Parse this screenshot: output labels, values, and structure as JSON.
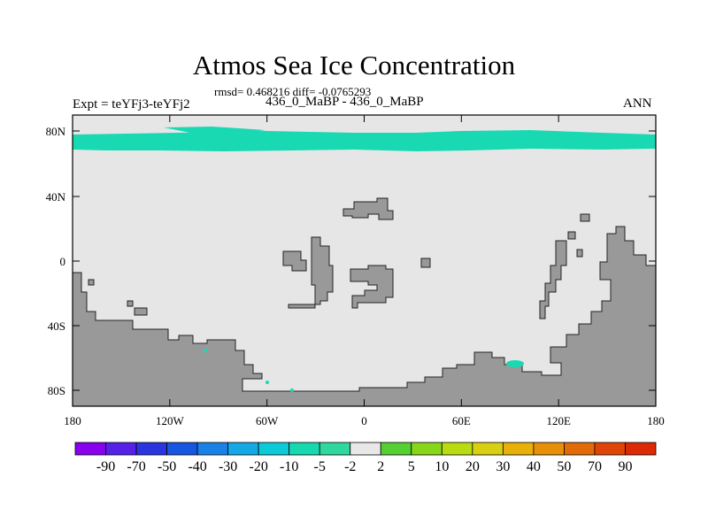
{
  "header": {
    "title": "Atmos Sea Ice Concentration",
    "stats": "rmsd= 0.468216 diff= -0.0765293",
    "subtitle": "436_0_MaBP - 436_0_MaBP",
    "experiment": "Expt = teYFj3-teYFj2",
    "season": "ANN"
  },
  "map": {
    "y_ticks": [
      "80N",
      "40N",
      "0",
      "40S",
      "80S"
    ],
    "x_ticks": [
      "180",
      "120W",
      "60W",
      "0",
      "60E",
      "120E",
      "180"
    ],
    "colors": {
      "background": "#e6e6e6",
      "land": "#999999",
      "ice_band": "#19d9b3",
      "frame": "#000000"
    }
  },
  "colorbar": {
    "labels": [
      "-90",
      "-70",
      "-50",
      "-40",
      "-30",
      "-20",
      "-10",
      "-5",
      "-2",
      "2",
      "5",
      "10",
      "20",
      "30",
      "40",
      "50",
      "70",
      "90"
    ],
    "colors": [
      "#8800ee",
      "#5520e8",
      "#2a35e0",
      "#1656e0",
      "#1a82e6",
      "#14a9e6",
      "#0ccbd8",
      "#17d9b0",
      "#2ed8a0",
      "#e8e8e8",
      "#55d033",
      "#88d61a",
      "#b8dc10",
      "#d8d010",
      "#e8b008",
      "#e69008",
      "#e36a08",
      "#e04508",
      "#dd2a05"
    ]
  }
}
